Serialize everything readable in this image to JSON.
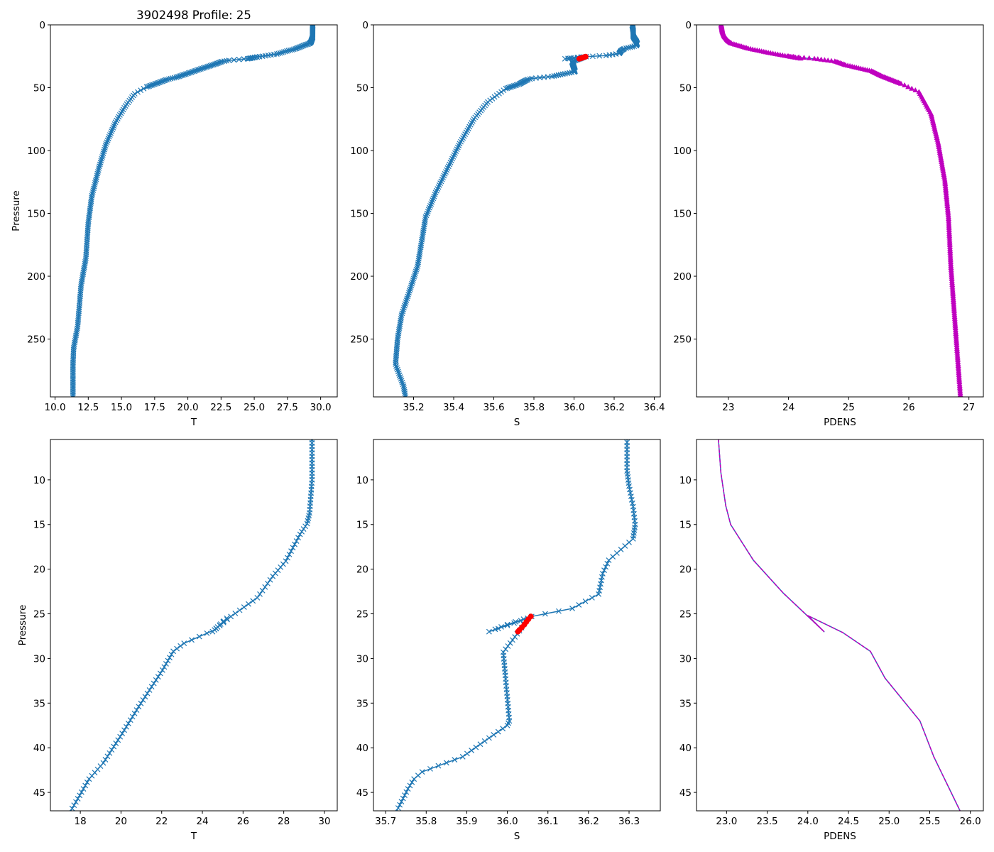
{
  "chart_data": {
    "type": "line",
    "title": "3902498 Profile: 25",
    "profiles": {
      "T": [
        [
          0,
          29.4
        ],
        [
          5.5,
          29.39
        ],
        [
          10,
          29.39
        ],
        [
          13.7,
          29.27
        ],
        [
          14.9,
          29.15
        ],
        [
          16.1,
          28.8
        ],
        [
          19.1,
          28.1
        ],
        [
          20.8,
          27.46
        ],
        [
          23.2,
          26.7
        ],
        [
          25.3,
          25.4
        ],
        [
          27.0,
          24.5
        ],
        [
          25.5,
          25.2
        ],
        [
          26.8,
          24.6
        ],
        [
          28.3,
          23.1
        ],
        [
          29.2,
          22.57
        ],
        [
          31.3,
          22.04
        ],
        [
          35.4,
          20.87
        ],
        [
          38.4,
          20.06
        ],
        [
          41.7,
          19.13
        ],
        [
          43.5,
          18.43
        ],
        [
          46.8,
          17.6
        ],
        [
          49.4,
          16.9
        ],
        [
          54.8,
          16.0
        ],
        [
          64.5,
          15.3
        ],
        [
          77.5,
          14.55
        ],
        [
          94.8,
          13.84
        ],
        [
          114,
          13.3
        ],
        [
          136,
          12.77
        ],
        [
          157.6,
          12.5
        ],
        [
          185.7,
          12.32
        ],
        [
          207,
          11.96
        ],
        [
          240,
          11.7
        ],
        [
          257,
          11.4
        ],
        [
          270,
          11.35
        ],
        [
          296,
          11.35
        ]
      ],
      "S": [
        [
          0,
          36.29
        ],
        [
          5,
          36.295
        ],
        [
          9,
          36.295
        ],
        [
          10.7,
          36.3
        ],
        [
          13,
          36.31
        ],
        [
          15,
          36.315
        ],
        [
          16.6,
          36.31
        ],
        [
          19,
          36.25
        ],
        [
          20.5,
          36.235
        ],
        [
          22.8,
          36.225
        ],
        [
          24.4,
          36.16
        ],
        [
          25.3,
          36.06
        ],
        [
          26.2,
          36.0
        ],
        [
          27.0,
          35.955
        ],
        [
          26.3,
          36.0
        ],
        [
          25.5,
          36.05
        ],
        [
          26.9,
          36.03
        ],
        [
          29.3,
          35.99
        ],
        [
          31.9,
          35.995
        ],
        [
          37,
          36.005
        ],
        [
          37.5,
          36.0
        ],
        [
          38.9,
          35.955
        ],
        [
          41,
          35.89
        ],
        [
          42.7,
          35.79
        ],
        [
          43.5,
          35.77
        ],
        [
          44.6,
          35.755
        ],
        [
          47.1,
          35.727
        ],
        [
          50.7,
          35.66
        ],
        [
          61.4,
          35.57
        ],
        [
          75,
          35.5
        ],
        [
          94.5,
          35.43
        ],
        [
          114,
          35.37
        ],
        [
          133.5,
          35.31
        ],
        [
          153,
          35.26
        ],
        [
          172.5,
          35.24
        ],
        [
          192,
          35.22
        ],
        [
          211.6,
          35.18
        ],
        [
          231,
          35.14
        ],
        [
          250,
          35.12
        ],
        [
          270,
          35.11
        ],
        [
          287.5,
          35.15
        ],
        [
          296,
          35.16
        ]
      ],
      "PDENS": [
        [
          0,
          22.88
        ],
        [
          5.5,
          22.9
        ],
        [
          9.2,
          22.93
        ],
        [
          12.9,
          22.99
        ],
        [
          15,
          23.05
        ],
        [
          19,
          23.33
        ],
        [
          22.7,
          23.7
        ],
        [
          25.1,
          23.98
        ],
        [
          27.0,
          24.2
        ],
        [
          25.2,
          24.0
        ],
        [
          27.1,
          24.43
        ],
        [
          29.2,
          24.77
        ],
        [
          32.2,
          24.95
        ],
        [
          37,
          25.38
        ],
        [
          41,
          25.55
        ],
        [
          47,
          25.87
        ],
        [
          53.6,
          26.17
        ],
        [
          71,
          26.37
        ],
        [
          94.5,
          26.49
        ],
        [
          124,
          26.6
        ],
        [
          153,
          26.66
        ],
        [
          192,
          26.7
        ],
        [
          231,
          26.76
        ],
        [
          270,
          26.82
        ],
        [
          296,
          26.86
        ]
      ]
    },
    "flagged_S": [
      [
        25.3,
        36.058
      ],
      [
        25.6,
        36.052
      ],
      [
        25.9,
        36.047
      ],
      [
        26.2,
        36.042
      ],
      [
        26.5,
        36.036
      ],
      [
        26.8,
        36.03
      ],
      [
        27.0,
        36.026
      ]
    ],
    "colors": {
      "line": "#1f77b4",
      "flag": "#ff0000",
      "pdens": "#bf00bf"
    },
    "panels": [
      {
        "var": "T",
        "xlabel": "T",
        "ylabel": "Pressure",
        "xlim": [
          9.65,
          31.25
        ],
        "ylim": [
          296,
          0
        ],
        "xticks": [
          10,
          12.5,
          15,
          17.5,
          20,
          22.5,
          25,
          27.5,
          30
        ],
        "xtick_labels": [
          "10.0",
          "12.5",
          "15.0",
          "17.5",
          "20.0",
          "22.5",
          "25.0",
          "27.5",
          "30.0"
        ],
        "yticks": [
          0,
          50,
          100,
          150,
          200,
          250
        ],
        "ytick_labels": [
          "0",
          "50",
          "100",
          "150",
          "200",
          "250"
        ],
        "style": "line-x"
      },
      {
        "var": "S",
        "xlabel": "S",
        "ylabel": "",
        "xlim": [
          35.0,
          36.43
        ],
        "ylim": [
          296,
          0
        ],
        "xticks": [
          35.2,
          35.4,
          35.6,
          35.8,
          36.0,
          36.2,
          36.4
        ],
        "xtick_labels": [
          "35.2",
          "35.4",
          "35.6",
          "35.8",
          "36.0",
          "36.2",
          "36.4"
        ],
        "yticks": [
          0,
          50,
          100,
          150,
          200,
          250
        ],
        "ytick_labels": [
          "0",
          "50",
          "100",
          "150",
          "200",
          "250"
        ],
        "style": "line-x-flag"
      },
      {
        "var": "PDENS",
        "xlabel": "PDENS",
        "ylabel": "",
        "xlim": [
          22.47,
          27.24
        ],
        "ylim": [
          296,
          0
        ],
        "xticks": [
          23,
          24,
          25,
          26,
          27
        ],
        "xtick_labels": [
          "23",
          "24",
          "25",
          "26",
          "27"
        ],
        "yticks": [
          0,
          50,
          100,
          150,
          200,
          250
        ],
        "ytick_labels": [
          "0",
          "50",
          "100",
          "150",
          "200",
          "250"
        ],
        "style": "line-tri"
      },
      {
        "var": "T",
        "xlabel": "T",
        "ylabel": "Pressure",
        "xlim": [
          16.53,
          30.63
        ],
        "ylim": [
          47.06,
          5.48
        ],
        "xticks": [
          18,
          20,
          22,
          24,
          26,
          28,
          30
        ],
        "xtick_labels": [
          "18",
          "20",
          "22",
          "24",
          "26",
          "28",
          "30"
        ],
        "yticks": [
          10,
          15,
          20,
          25,
          30,
          35,
          40,
          45
        ],
        "ytick_labels": [
          "10",
          "15",
          "20",
          "25",
          "30",
          "35",
          "40",
          "45"
        ],
        "style": "line-x"
      },
      {
        "var": "S",
        "xlabel": "S",
        "ylabel": "",
        "xlim": [
          35.67,
          36.377
        ],
        "ylim": [
          47.06,
          5.48
        ],
        "xticks": [
          35.7,
          35.8,
          35.9,
          36.0,
          36.1,
          36.2,
          36.3
        ],
        "xtick_labels": [
          "35.7",
          "35.8",
          "35.9",
          "36.0",
          "36.1",
          "36.2",
          "36.3"
        ],
        "yticks": [
          10,
          15,
          20,
          25,
          30,
          35,
          40,
          45
        ],
        "ytick_labels": [
          "10",
          "15",
          "20",
          "25",
          "30",
          "35",
          "40",
          "45"
        ],
        "style": "line-x-flag"
      },
      {
        "var": "PDENS",
        "xlabel": "PDENS",
        "ylabel": "",
        "xlim": [
          22.63,
          26.16
        ],
        "ylim": [
          47.06,
          5.48
        ],
        "xticks": [
          23.0,
          23.5,
          24.0,
          24.5,
          25.0,
          25.5,
          26.0
        ],
        "xtick_labels": [
          "23.0",
          "23.5",
          "24.0",
          "24.5",
          "25.0",
          "25.5",
          "26.0"
        ],
        "yticks": [
          10,
          15,
          20,
          25,
          30,
          35,
          40,
          45
        ],
        "ytick_labels": [
          "10",
          "15",
          "20",
          "25",
          "30",
          "35",
          "40",
          "45"
        ],
        "style": "line-dash"
      }
    ]
  }
}
